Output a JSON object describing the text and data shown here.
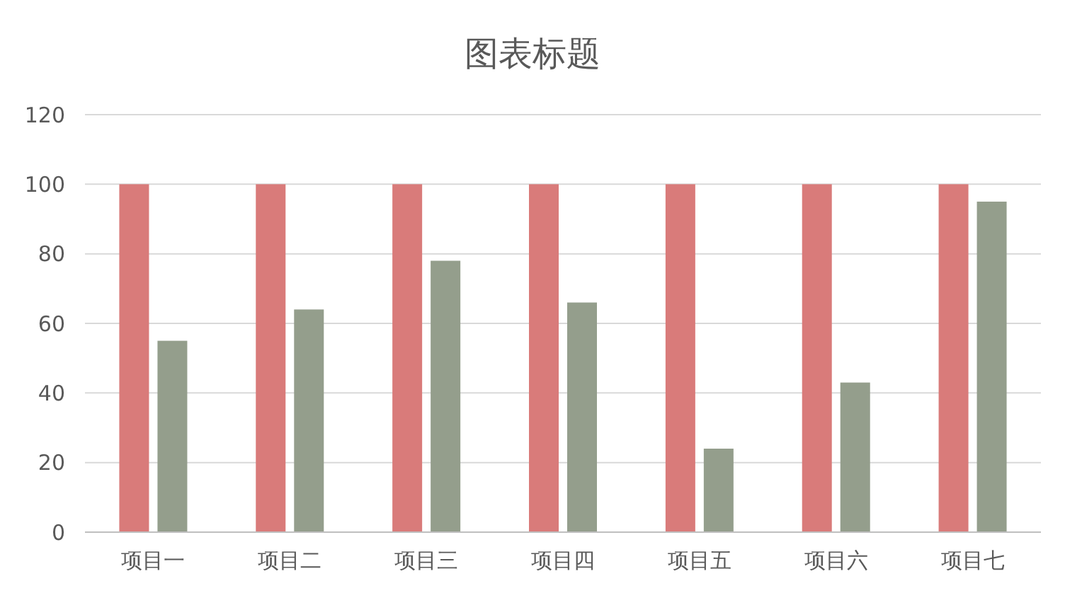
{
  "chart_data": {
    "type": "bar",
    "title": "图表标题",
    "categories": [
      "项目一",
      "项目二",
      "项目三",
      "项目四",
      "项目五",
      "项目六",
      "项目七"
    ],
    "series": [
      {
        "color": "#d97b7a",
        "values": [
          100,
          100,
          100,
          100,
          100,
          100,
          100
        ]
      },
      {
        "color": "#949e8c",
        "values": [
          55,
          64,
          78,
          66,
          24,
          43,
          95
        ]
      }
    ],
    "ylim": [
      0,
      120
    ],
    "yticks": [
      0,
      20,
      40,
      60,
      80,
      100,
      120
    ],
    "grid": "y"
  }
}
